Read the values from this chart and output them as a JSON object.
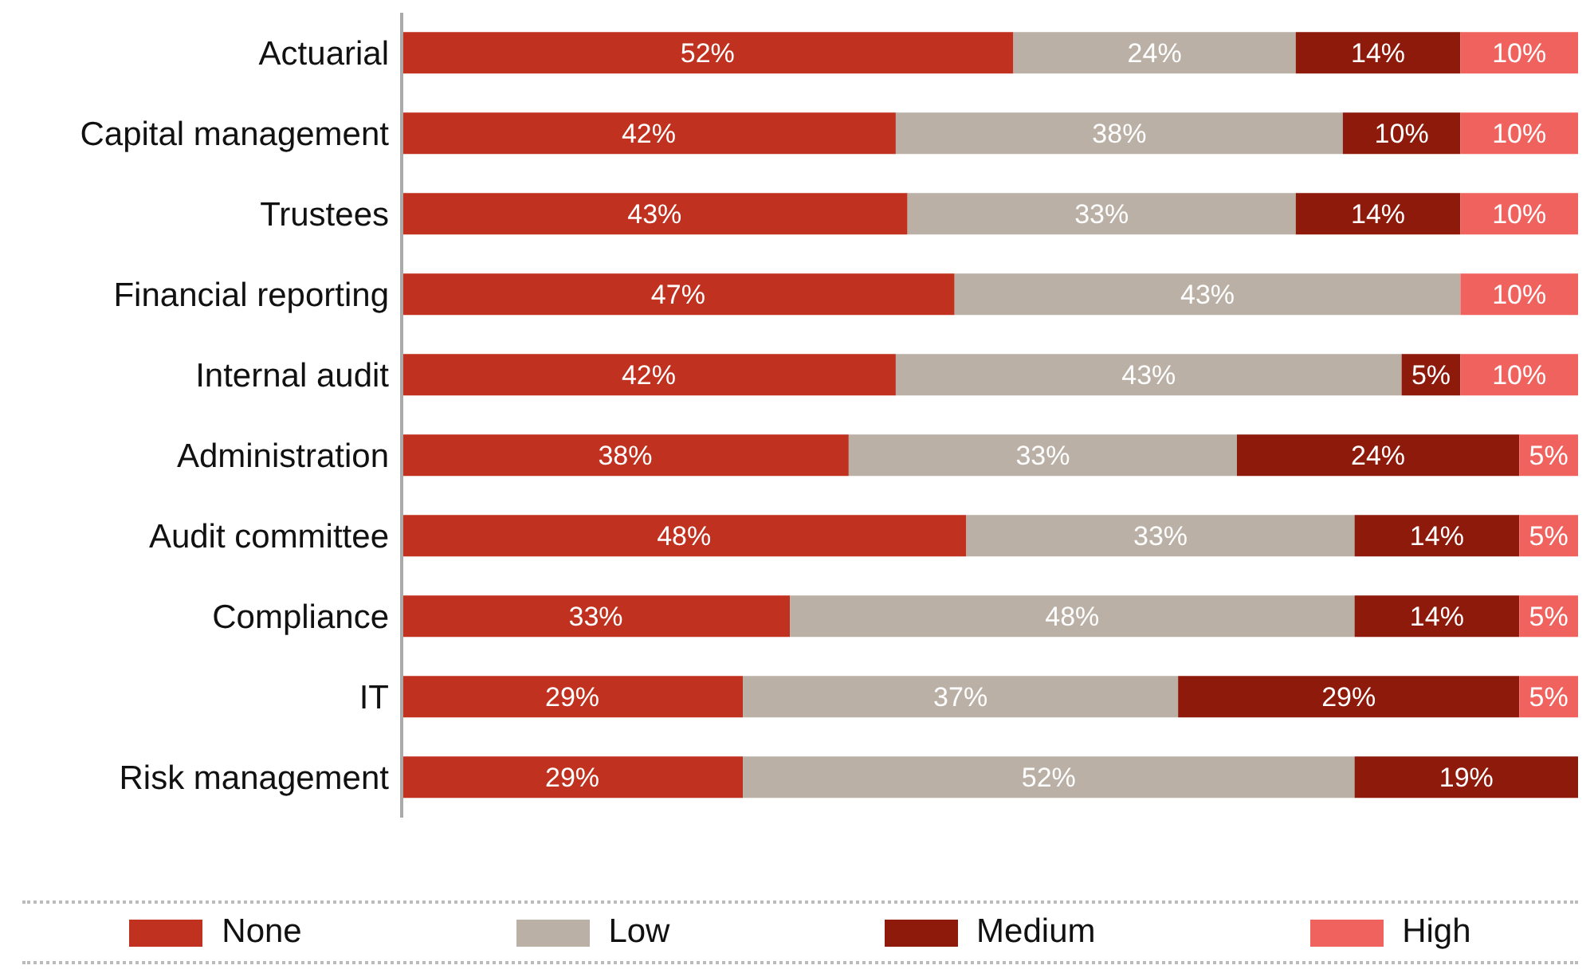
{
  "chart_data": {
    "type": "bar",
    "orientation": "horizontal",
    "stacked": true,
    "categories": [
      "Actuarial",
      "Capital management",
      "Trustees",
      "Financial reporting",
      "Internal audit",
      "Administration",
      "Audit committee",
      "Compliance",
      "IT",
      "Risk management"
    ],
    "series": [
      {
        "name": "None",
        "color": "#c0311f",
        "values": [
          52,
          42,
          43,
          47,
          42,
          38,
          48,
          33,
          29,
          29
        ],
        "value_labels": [
          "52%",
          "42%",
          "43%",
          "47%",
          "42%",
          "38%",
          "48%",
          "33%",
          "29%",
          "29%"
        ]
      },
      {
        "name": "Low",
        "color": "#bab0a6",
        "values": [
          24,
          38,
          33,
          43,
          43,
          33,
          33,
          48,
          37,
          52
        ],
        "value_labels": [
          "24%",
          "38%",
          "33%",
          "43%",
          "43%",
          "33%",
          "33%",
          "48%",
          "37%",
          "52%"
        ]
      },
      {
        "name": "Medium",
        "color": "#8e1a0c",
        "values": [
          14,
          10,
          14,
          null,
          5,
          24,
          14,
          14,
          29,
          19
        ],
        "value_labels": [
          "14%",
          "10%",
          "14%",
          null,
          "5%",
          "24%",
          "14%",
          "14%",
          "29%",
          "19%"
        ]
      },
      {
        "name": "High",
        "color": "#f0625e",
        "values": [
          10,
          10,
          10,
          10,
          10,
          5,
          5,
          5,
          5,
          null
        ],
        "value_labels": [
          "10%",
          "10%",
          "10%",
          "10%",
          "10%",
          "5%",
          "5%",
          "5%",
          "5%",
          null
        ]
      }
    ],
    "xlim": [
      0,
      100
    ],
    "tick_labels": "y",
    "legend": "bottom"
  }
}
